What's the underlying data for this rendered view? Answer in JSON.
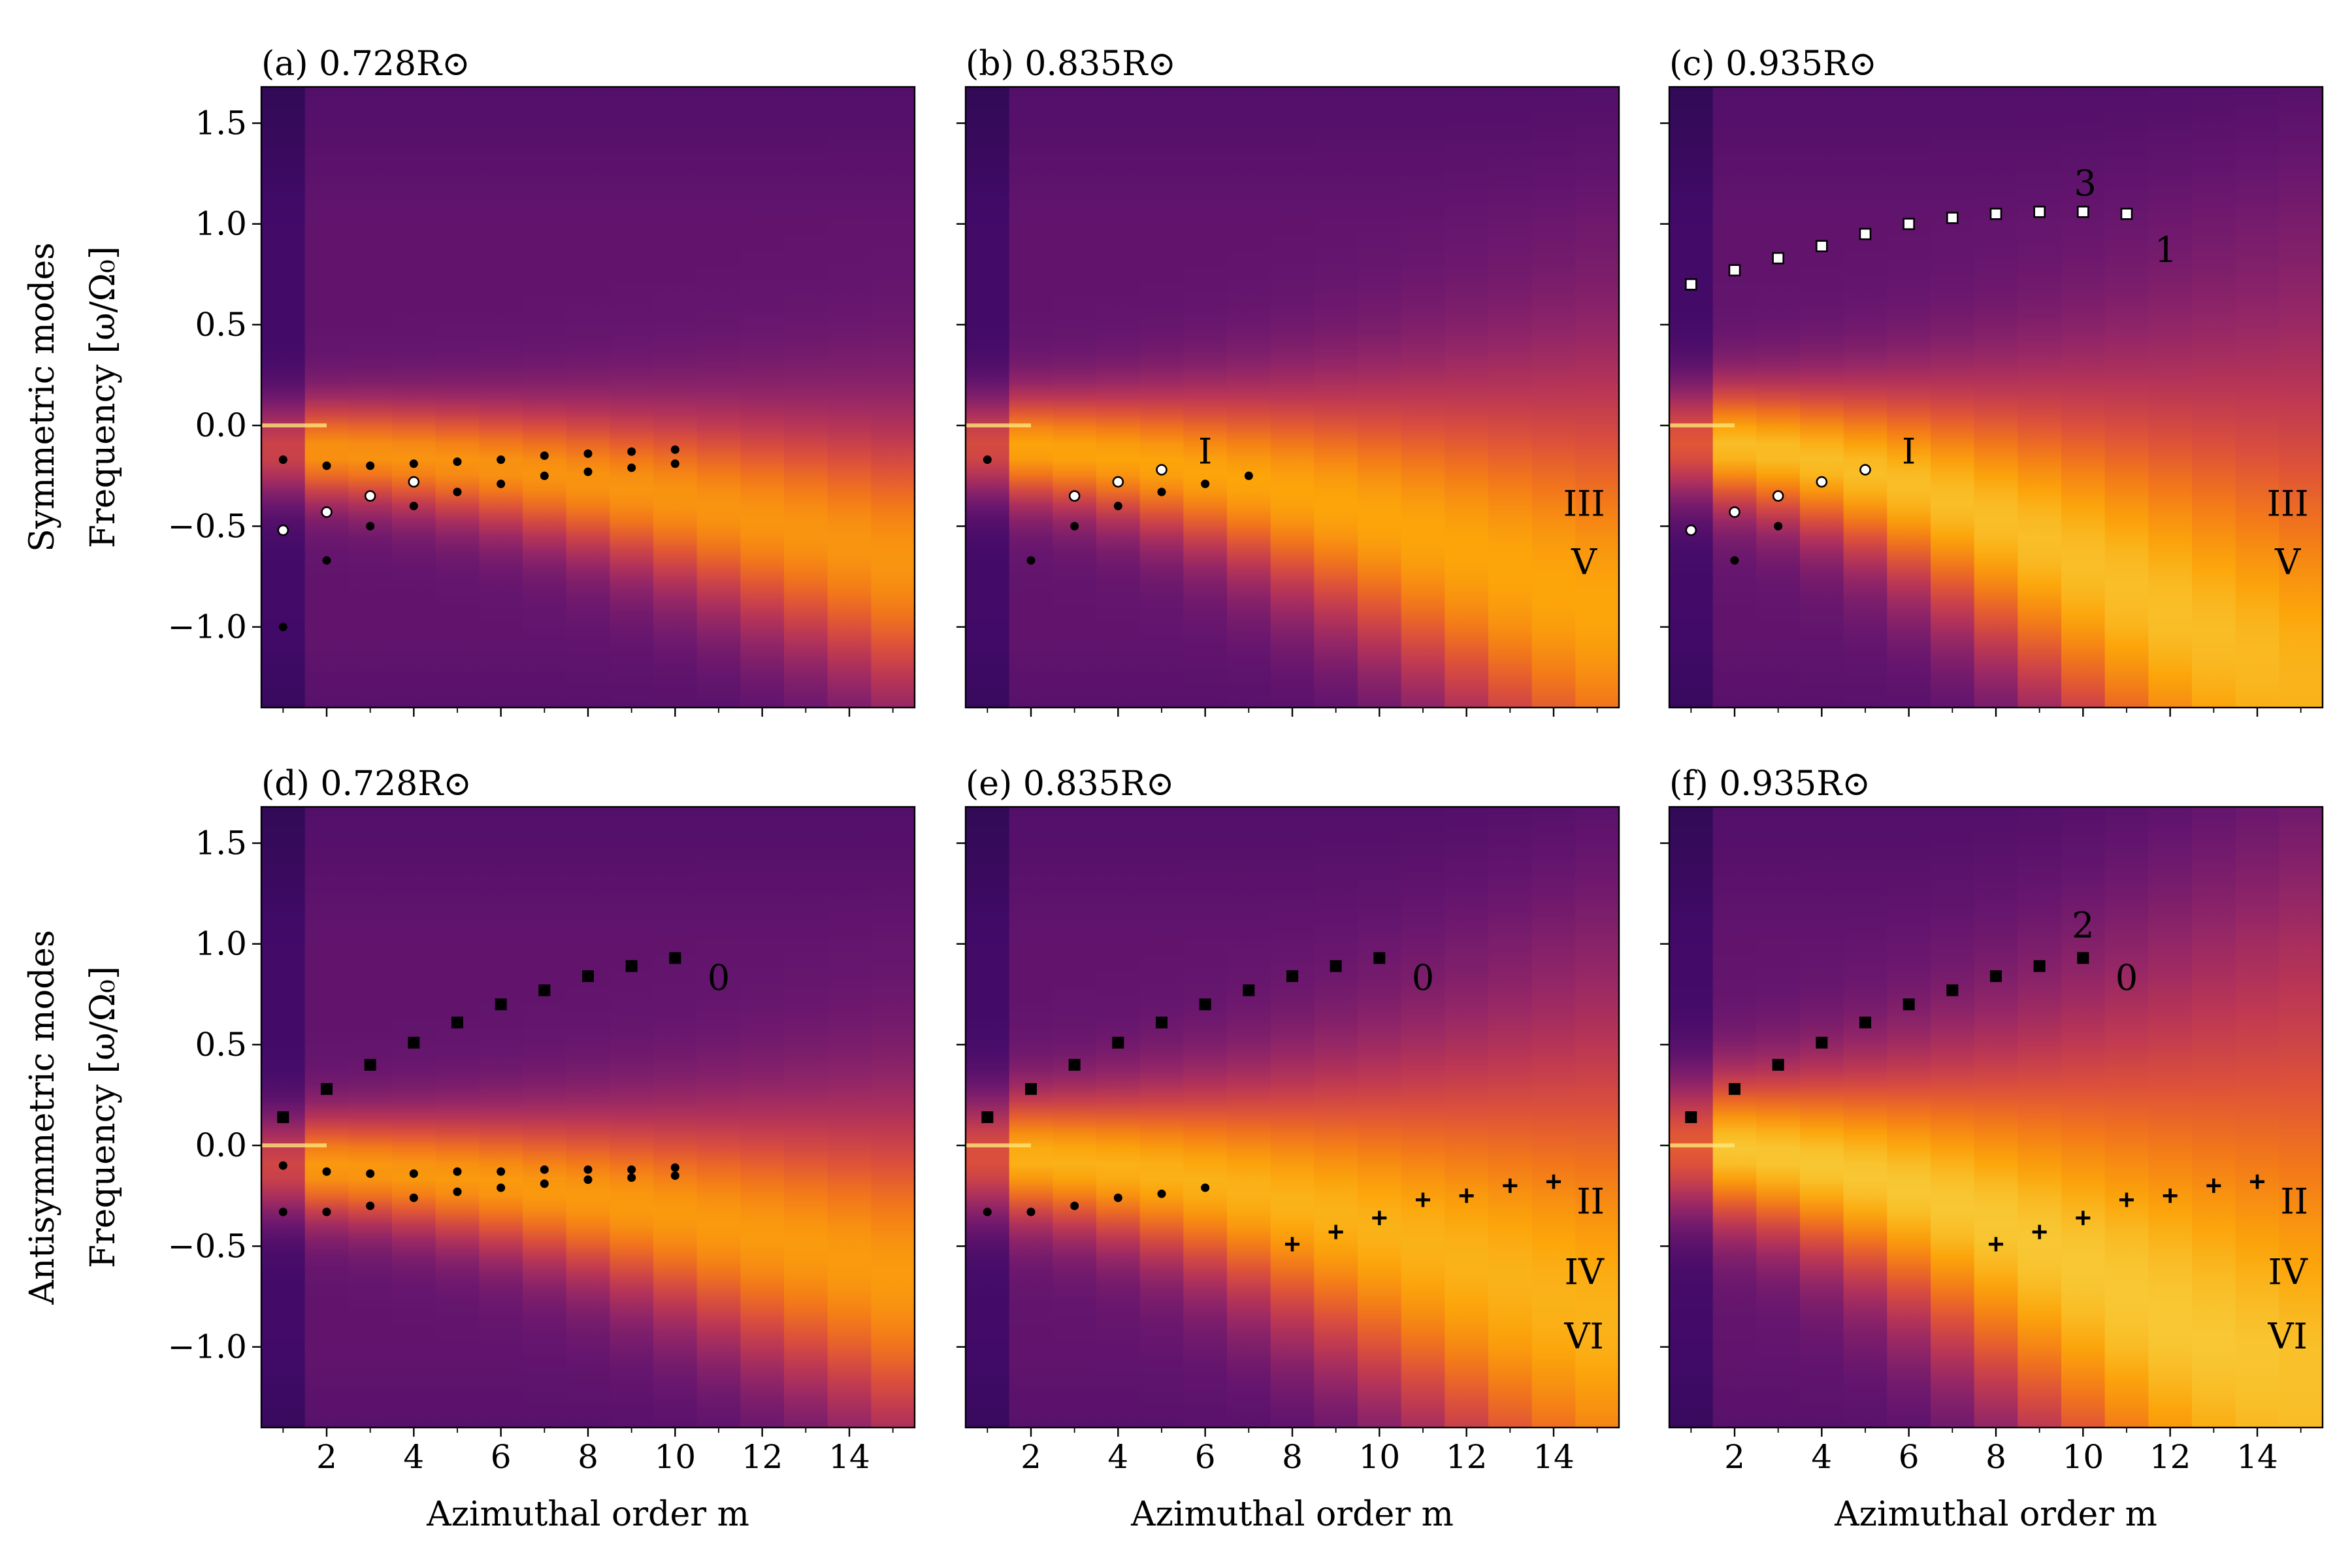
{
  "chart_data": {
    "type": "heatmap",
    "figure": {
      "xlabel": "Azimuthal order m",
      "row_ylabels": [
        "Symmetric modes\nFrequency [ω/Ω₀]",
        "Antisymmetric modes\nFrequency [ω/Ω₀]"
      ],
      "xlim": [
        0.5,
        15.5
      ],
      "ylim": [
        -1.4,
        1.68
      ],
      "x_ticks": [
        2,
        4,
        6,
        8,
        10,
        12,
        14
      ],
      "y_ticks": [
        -1.0,
        -0.5,
        0.0,
        0.5,
        1.0,
        1.5
      ],
      "y_tick_labels": [
        "−1.0",
        "−0.5",
        "0.0",
        "0.5",
        "1.0",
        "1.5"
      ],
      "colormap": "inferno"
    },
    "panels": [
      {
        "id": "a",
        "title": "(a) 0.728R⊙",
        "ridge_slope": -0.004,
        "ridge_offset": -0.12,
        "ridge_spread": 0.17,
        "ridge_growth": 0.004,
        "intensity": 0.78,
        "series": [
          {
            "name": "filled-dots-upper",
            "marker": "dot",
            "x": [
              1,
              2,
              3,
              4,
              5,
              6,
              7,
              8,
              9,
              10
            ],
            "y": [
              -0.17,
              -0.2,
              -0.2,
              -0.19,
              -0.18,
              -0.17,
              -0.15,
              -0.14,
              -0.13,
              -0.12
            ]
          },
          {
            "name": "open-circles",
            "marker": "circle",
            "x": [
              1,
              2,
              3,
              4
            ],
            "y": [
              -0.52,
              -0.43,
              -0.35,
              -0.28
            ]
          },
          {
            "name": "filled-dots-lower",
            "marker": "dot",
            "x": [
              1,
              2,
              3,
              4,
              5,
              6,
              7,
              8,
              9,
              10
            ],
            "y": [
              -1.0,
              -0.67,
              -0.5,
              -0.4,
              -0.33,
              -0.29,
              -0.25,
              -0.23,
              -0.21,
              -0.19
            ]
          }
        ],
        "annotations": []
      },
      {
        "id": "b",
        "title": "(b) 0.835R⊙",
        "ridge_slope": -0.006,
        "ridge_offset": -0.1,
        "ridge_spread": 0.18,
        "ridge_growth": 0.008,
        "intensity": 0.84,
        "series": [
          {
            "name": "filled-dots",
            "marker": "dot",
            "x": [
              1,
              2,
              3,
              4,
              5,
              6,
              7
            ],
            "y": [
              -0.17,
              -0.67,
              -0.5,
              -0.4,
              -0.33,
              -0.29,
              -0.25
            ]
          },
          {
            "name": "open-circles",
            "marker": "circle",
            "x": [
              3,
              4,
              5
            ],
            "y": [
              -0.35,
              -0.28,
              -0.22
            ]
          }
        ],
        "annotations": [
          {
            "text": "I",
            "x": 6,
            "y": -0.13
          },
          {
            "text": "III",
            "x": 14.7,
            "y": -0.39
          },
          {
            "text": "V",
            "x": 14.7,
            "y": -0.68
          }
        ]
      },
      {
        "id": "c",
        "title": "(c) 0.935R⊙",
        "ridge_slope": -0.01,
        "ridge_offset": -0.08,
        "ridge_spread": 0.2,
        "ridge_growth": 0.012,
        "intensity": 0.92,
        "series": [
          {
            "name": "open-squares",
            "marker": "square",
            "x": [
              1,
              2,
              3,
              4,
              5,
              6,
              7,
              8,
              9,
              10,
              11
            ],
            "y": [
              0.7,
              0.77,
              0.83,
              0.89,
              0.95,
              1.0,
              1.03,
              1.05,
              1.06,
              1.06,
              1.05
            ]
          },
          {
            "name": "open-circles",
            "marker": "circle",
            "x": [
              1,
              2,
              3,
              4,
              5
            ],
            "y": [
              -0.52,
              -0.43,
              -0.35,
              -0.28,
              -0.22
            ]
          },
          {
            "name": "filled-dots",
            "marker": "dot",
            "x": [
              2,
              3
            ],
            "y": [
              -0.67,
              -0.5
            ]
          }
        ],
        "annotations": [
          {
            "text": "3",
            "x": 10.05,
            "y": 1.2
          },
          {
            "text": "1",
            "x": 11.9,
            "y": 0.87
          },
          {
            "text": "I",
            "x": 6.0,
            "y": -0.13
          },
          {
            "text": "III",
            "x": 14.7,
            "y": -0.39
          },
          {
            "text": "V",
            "x": 14.7,
            "y": -0.68
          }
        ]
      },
      {
        "id": "d",
        "title": "(d) 0.728R⊙",
        "ridge_slope": -0.004,
        "ridge_offset": -0.1,
        "ridge_spread": 0.18,
        "ridge_growth": 0.005,
        "intensity": 0.8,
        "series": [
          {
            "name": "filled-squares",
            "marker": "fsquare",
            "x": [
              1,
              2,
              3,
              4,
              5,
              6,
              7,
              8,
              9,
              10
            ],
            "y": [
              0.14,
              0.28,
              0.4,
              0.51,
              0.61,
              0.7,
              0.77,
              0.84,
              0.89,
              0.93
            ]
          },
          {
            "name": "filled-dots-upper",
            "marker": "dot",
            "x": [
              1,
              2,
              3,
              4,
              5,
              6,
              7,
              8,
              9,
              10
            ],
            "y": [
              -0.1,
              -0.13,
              -0.14,
              -0.14,
              -0.13,
              -0.13,
              -0.12,
              -0.12,
              -0.12,
              -0.11
            ]
          },
          {
            "name": "filled-dots-lower",
            "marker": "dot",
            "x": [
              1,
              2,
              3,
              4,
              5,
              6,
              7,
              8,
              9,
              10
            ],
            "y": [
              -0.33,
              -0.33,
              -0.3,
              -0.26,
              -0.23,
              -0.21,
              -0.19,
              -0.17,
              -0.16,
              -0.15
            ]
          }
        ],
        "annotations": [
          {
            "text": "0",
            "x": 11.0,
            "y": 0.83
          }
        ]
      },
      {
        "id": "e",
        "title": "(e) 0.835R⊙",
        "ridge_slope": -0.006,
        "ridge_offset": -0.05,
        "ridge_spread": 0.21,
        "ridge_growth": 0.01,
        "intensity": 0.88,
        "series": [
          {
            "name": "filled-squares",
            "marker": "fsquare",
            "x": [
              1,
              2,
              3,
              4,
              5,
              6,
              7,
              8,
              9,
              10
            ],
            "y": [
              0.14,
              0.28,
              0.4,
              0.51,
              0.61,
              0.7,
              0.77,
              0.84,
              0.89,
              0.93
            ]
          },
          {
            "name": "filled-dots",
            "marker": "dot",
            "x": [
              1,
              2,
              3,
              4,
              5,
              6
            ],
            "y": [
              -0.33,
              -0.33,
              -0.3,
              -0.26,
              -0.24,
              -0.21
            ]
          },
          {
            "name": "plus-markers",
            "marker": "plus",
            "x": [
              8,
              9,
              10,
              11,
              12,
              13,
              14
            ],
            "y": [
              -0.49,
              -0.43,
              -0.36,
              -0.27,
              -0.25,
              -0.2,
              -0.18
            ]
          }
        ],
        "annotations": [
          {
            "text": "0",
            "x": 11.0,
            "y": 0.83
          },
          {
            "text": "II",
            "x": 14.85,
            "y": -0.28
          },
          {
            "text": "IV",
            "x": 14.7,
            "y": -0.63
          },
          {
            "text": "VI",
            "x": 14.7,
            "y": -0.95
          }
        ]
      },
      {
        "id": "f",
        "title": "(f) 0.935R⊙",
        "ridge_slope": -0.01,
        "ridge_offset": 0.0,
        "ridge_spread": 0.24,
        "ridge_growth": 0.016,
        "intensity": 0.95,
        "series": [
          {
            "name": "filled-squares",
            "marker": "fsquare",
            "x": [
              1,
              2,
              3,
              4,
              5,
              6,
              7,
              8,
              9,
              10
            ],
            "y": [
              0.14,
              0.28,
              0.4,
              0.51,
              0.61,
              0.7,
              0.77,
              0.84,
              0.89,
              0.93
            ]
          },
          {
            "name": "plus-markers",
            "marker": "plus",
            "x": [
              8,
              9,
              10,
              11,
              12,
              13,
              14
            ],
            "y": [
              -0.49,
              -0.43,
              -0.36,
              -0.27,
              -0.25,
              -0.2,
              -0.18
            ]
          }
        ],
        "annotations": [
          {
            "text": "2",
            "x": 10.0,
            "y": 1.09
          },
          {
            "text": "0",
            "x": 11.0,
            "y": 0.83
          },
          {
            "text": "II",
            "x": 14.85,
            "y": -0.28
          },
          {
            "text": "IV",
            "x": 14.7,
            "y": -0.63
          },
          {
            "text": "VI",
            "x": 14.7,
            "y": -0.95
          }
        ]
      }
    ]
  }
}
